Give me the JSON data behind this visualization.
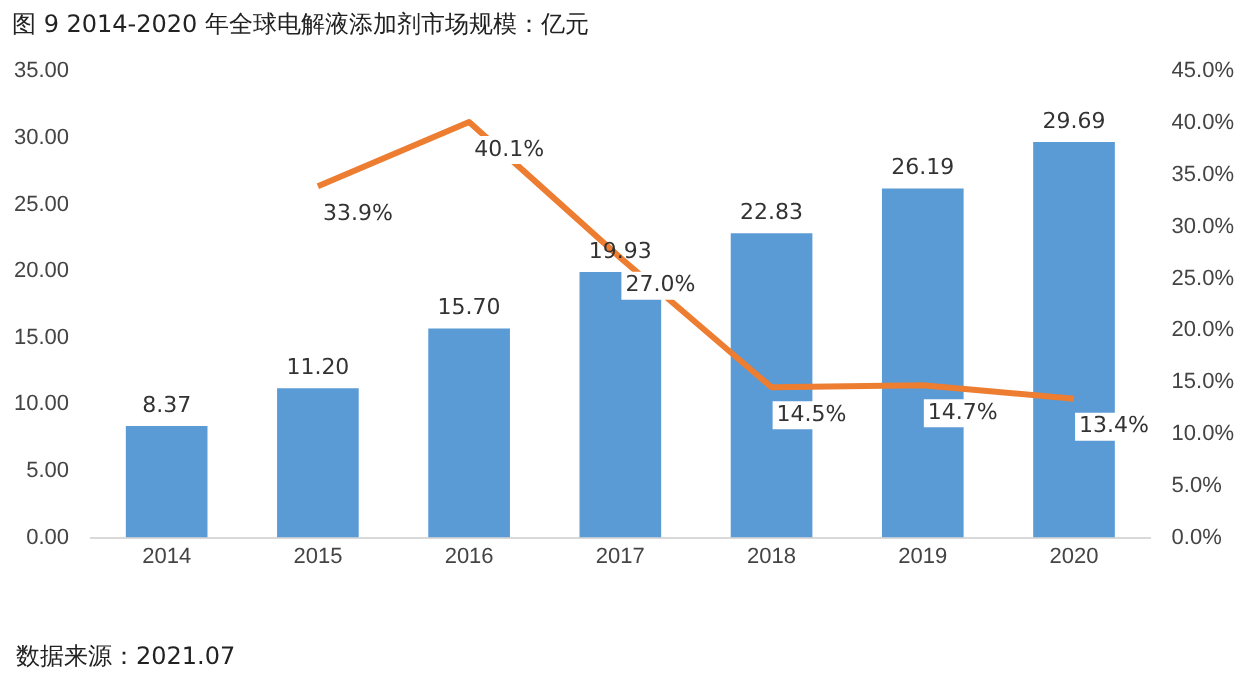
{
  "chart_data": {
    "type": "bar",
    "title": "图 9 2014-2020 年全球电解液添加剂市场规模：亿元",
    "categories": [
      "2014",
      "2015",
      "2016",
      "2017",
      "2018",
      "2019",
      "2020"
    ],
    "series": [
      {
        "color": "#5b9bd5",
        "values": [
          8.37,
          11.2,
          15.7,
          19.93,
          22.83,
          26.19,
          29.69
        ],
        "value_labels": [
          "8.37",
          "11.20",
          "15.70",
          "19.93",
          "22.83",
          "26.19",
          "29.69"
        ]
      },
      {
        "type": "line",
        "axis": "y2",
        "color": "#ed7d31",
        "values": [
          null,
          33.9,
          40.1,
          27.0,
          14.5,
          14.7,
          13.4
        ],
        "value_labels": [
          null,
          "33.9%",
          "40.1%",
          "27.0%",
          "14.5%",
          "14.7%",
          "13.4%"
        ]
      }
    ],
    "ylim": [
      0,
      35
    ],
    "yticks": [
      {
        "value": 0,
        "label": "0.00"
      },
      {
        "value": 5,
        "label": "5.00"
      },
      {
        "value": 10,
        "label": "10.00"
      },
      {
        "value": 15,
        "label": "15.00"
      },
      {
        "value": 20,
        "label": "20.00"
      },
      {
        "value": 25,
        "label": "25.00"
      },
      {
        "value": 30,
        "label": "30.00"
      },
      {
        "value": 35,
        "label": "35.00"
      }
    ],
    "y2lim": [
      0,
      45
    ],
    "y2ticks": [
      {
        "value": 0,
        "label": "0.0%"
      },
      {
        "value": 5,
        "label": "5.0%"
      },
      {
        "value": 10,
        "label": "10.0%"
      },
      {
        "value": 15,
        "label": "15.0%"
      },
      {
        "value": 20,
        "label": "20.0%"
      },
      {
        "value": 25,
        "label": "25.0%"
      },
      {
        "value": 30,
        "label": "30.0%"
      },
      {
        "value": 35,
        "label": "35.0%"
      },
      {
        "value": 40,
        "label": "40.0%"
      },
      {
        "value": 45,
        "label": "45.0%"
      }
    ],
    "grid": false,
    "legend": false,
    "marker": "none",
    "annotations": [
      "数据来源：2021.07"
    ]
  }
}
